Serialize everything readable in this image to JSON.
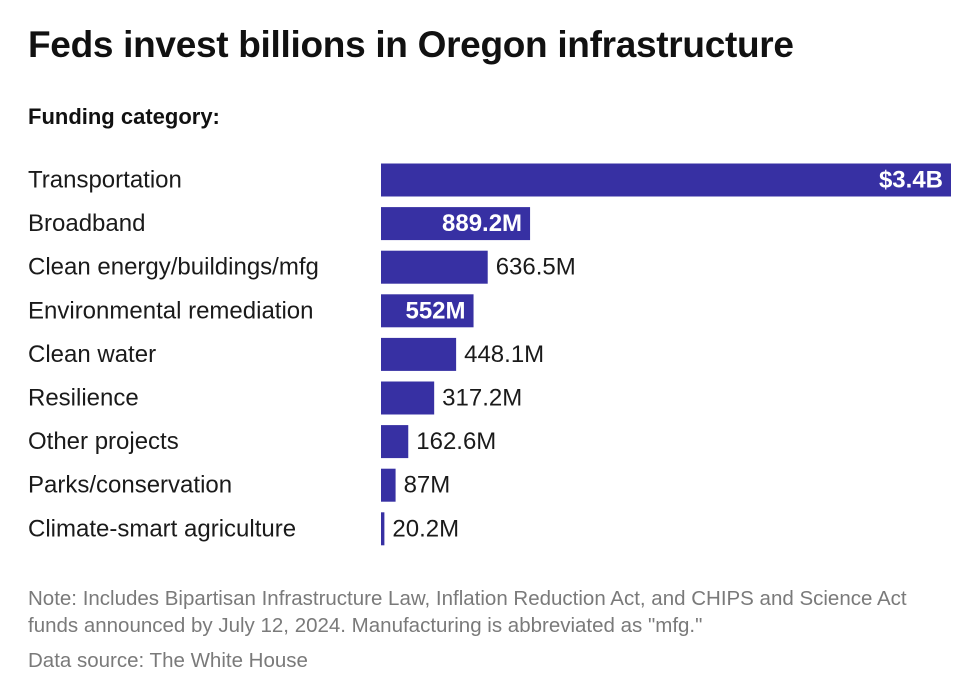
{
  "title": "Feds invest billions in Oregon infrastructure",
  "subtitle": "Funding category:",
  "note": "Note: Includes Bipartisan Infrastructure Law, Inflation Reduction Act, and CHIPS and Science Act funds announced by July 12, 2024. Manufacturing is abbreviated as \"mfg.\"",
  "source": "Data source: The White House",
  "colors": {
    "bar": "#3730a3",
    "label_inside": "#ffffff",
    "label_outside": "#1a1a1a"
  },
  "chart_data": {
    "type": "bar",
    "orientation": "horizontal",
    "title": "Feds invest billions in Oregon infrastructure",
    "categories": [
      "Transportation",
      "Broadband",
      "Clean energy/buildings/mfg",
      "Environmental remediation",
      "Clean water",
      "Resilience",
      "Other projects",
      "Parks/conservation",
      "Climate-smart agriculture"
    ],
    "values": [
      3400,
      889.2,
      636.5,
      552,
      448.1,
      317.2,
      162.6,
      87,
      20.2
    ],
    "units": "millions of dollars",
    "value_labels": [
      "$3.4B",
      "889.2M",
      "636.5M",
      "552M",
      "448.1M",
      "317.2M",
      "162.6M",
      "87M",
      "20.2M"
    ],
    "label_position": [
      "inside",
      "inside",
      "outside",
      "inside",
      "outside",
      "outside",
      "outside",
      "outside",
      "outside"
    ],
    "xlim": [
      0,
      3400
    ],
    "grid": false,
    "legend": "none"
  }
}
